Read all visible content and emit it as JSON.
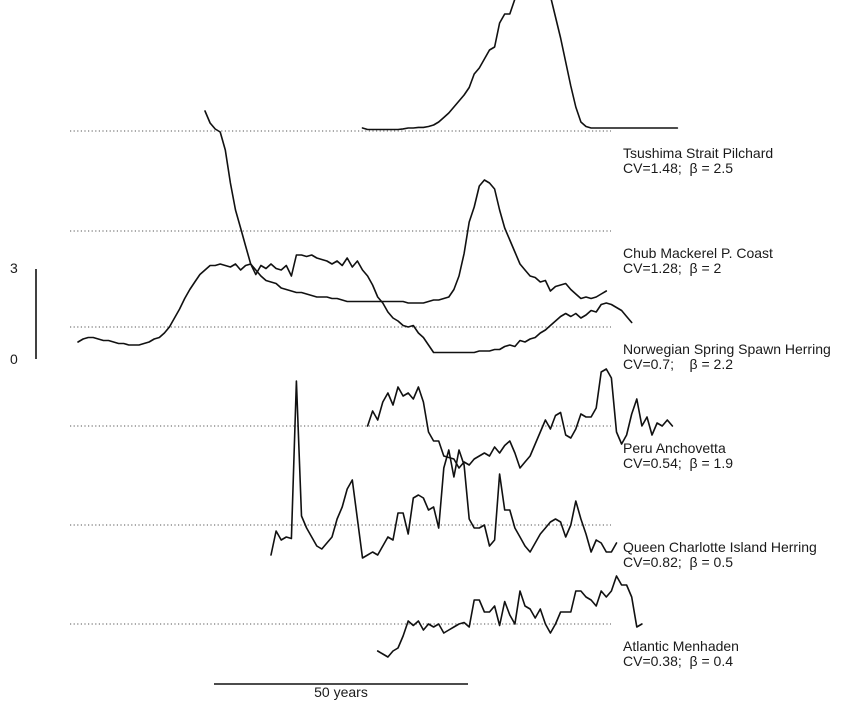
{
  "chart_data": {
    "type": "line",
    "title": "",
    "xlabel": "",
    "ylabel": "",
    "year_step": 1,
    "scale_bars": {
      "y": {
        "value_range": [
          0,
          3
        ],
        "tick_labels": [
          "0",
          "3"
        ]
      },
      "x": {
        "years": 50,
        "label": "50 years"
      }
    },
    "series": [
      {
        "name": "Tsushima Strait Pilchard",
        "stats": "CV=1.48;  β = 2.5",
        "start_year": 56,
        "values": [
          0.1,
          0.05,
          0.05,
          0.05,
          0.05,
          0.05,
          0.05,
          0.05,
          0.07,
          0.1,
          0.1,
          0.12,
          0.12,
          0.15,
          0.2,
          0.3,
          0.45,
          0.6,
          0.8,
          1.0,
          1.2,
          1.45,
          1.9,
          2.1,
          2.4,
          2.7,
          2.8,
          3.6,
          3.9,
          3.9,
          4.4,
          4.7,
          5.1,
          5.3,
          5.3,
          5.5,
          5.1,
          4.5,
          3.8,
          3.1,
          2.3,
          1.5,
          0.8,
          0.3,
          0.15,
          0.1,
          0.1,
          0.1,
          0.1,
          0.1,
          0.1,
          0.1,
          0.1,
          0.1,
          0.1,
          0.1,
          0.1,
          0.1,
          0.1,
          0.1,
          0.1,
          0.1,
          0.1
        ]
      },
      {
        "name": "Chub Mackerel P. Coast",
        "stats": "CV=1.28;  β = 2",
        "start_year": 25,
        "values": [
          4.0,
          3.6,
          3.4,
          3.3,
          2.7,
          1.6,
          0.7,
          0.1,
          -0.5,
          -1.1,
          -1.3,
          -1.5,
          -1.65,
          -1.7,
          -1.75,
          -1.9,
          -1.95,
          -2.0,
          -2.05,
          -2.05,
          -2.1,
          -2.15,
          -2.2,
          -2.2,
          -2.2,
          -2.25,
          -2.25,
          -2.3,
          -2.35,
          -2.35,
          -2.35,
          -2.35,
          -2.35,
          -2.35,
          -2.35,
          -2.35,
          -2.35,
          -2.35,
          -2.35,
          -2.35,
          -2.4,
          -2.4,
          -2.4,
          -2.4,
          -2.35,
          -2.3,
          -2.3,
          -2.25,
          -2.2,
          -1.95,
          -1.5,
          -0.75,
          0.3,
          0.8,
          1.5,
          1.7,
          1.6,
          1.4,
          0.7,
          0.1,
          -0.3,
          -0.7,
          -1.1,
          -1.3,
          -1.5,
          -1.55,
          -1.7,
          -1.65,
          -2.0,
          -1.85,
          -1.8,
          -1.75,
          -1.95,
          -2.1,
          -2.25,
          -2.2,
          -2.25,
          -2.2,
          -2.1,
          -2.0
        ]
      },
      {
        "name": "Norwegian Spring Spawn Herring",
        "stats": "CV=0.7;    β = 2.2",
        "start_year": 0,
        "values": [
          -0.5,
          -0.4,
          -0.35,
          -0.35,
          -0.4,
          -0.45,
          -0.45,
          -0.5,
          -0.55,
          -0.55,
          -0.6,
          -0.6,
          -0.6,
          -0.55,
          -0.5,
          -0.4,
          -0.35,
          -0.2,
          0.0,
          0.3,
          0.6,
          0.95,
          1.25,
          1.5,
          1.75,
          1.9,
          2.05,
          2.05,
          2.1,
          2.05,
          2.0,
          2.1,
          1.9,
          2.05,
          2.1,
          1.75,
          2.05,
          1.95,
          2.1,
          1.95,
          1.9,
          2.05,
          1.7,
          2.4,
          2.4,
          2.35,
          2.4,
          2.3,
          2.25,
          2.2,
          2.1,
          2.2,
          2.05,
          2.3,
          2.0,
          2.2,
          1.9,
          1.7,
          1.4,
          1.0,
          0.8,
          0.5,
          0.3,
          0.2,
          0.05,
          0.0,
          0.05,
          -0.2,
          -0.35,
          -0.6,
          -0.85,
          -0.85,
          -0.85,
          -0.85,
          -0.85,
          -0.85,
          -0.85,
          -0.85,
          -0.85,
          -0.8,
          -0.8,
          -0.8,
          -0.75,
          -0.75,
          -0.65,
          -0.6,
          -0.65,
          -0.45,
          -0.5,
          -0.4,
          -0.35,
          -0.2,
          -0.1,
          0.05,
          0.2,
          0.35,
          0.45,
          0.35,
          0.45,
          0.3,
          0.4,
          0.55,
          0.5,
          0.75,
          0.8,
          0.75,
          0.65,
          0.55,
          0.35,
          0.15
        ]
      },
      {
        "name": "Peru Anchovetta",
        "stats": "CV=0.54;  β = 1.9",
        "start_year": 57,
        "values": [
          0.0,
          0.5,
          0.2,
          0.8,
          1.1,
          0.7,
          1.3,
          1.0,
          1.1,
          0.9,
          1.3,
          0.8,
          -0.2,
          -0.5,
          -0.5,
          -1.0,
          -1.05,
          -1.1,
          -1.4,
          -1.2,
          -1.3,
          -1.1,
          -1.0,
          -0.9,
          -1.0,
          -0.7,
          -0.9,
          -0.65,
          -0.5,
          -0.9,
          -1.4,
          -1.2,
          -1.0,
          -0.6,
          -0.2,
          0.2,
          -0.1,
          0.35,
          0.45,
          -0.3,
          -0.4,
          -0.1,
          0.4,
          0.3,
          0.3,
          0.6,
          1.8,
          1.9,
          1.6,
          -0.2,
          -0.6,
          -0.3,
          0.4,
          0.9,
          0.0,
          0.3,
          -0.3,
          0.1,
          0.0,
          0.2,
          0.0
        ]
      },
      {
        "name": "Queen Charlotte Island Herring",
        "stats": "CV=0.82;  β = 0.5",
        "start_year": 38,
        "values": [
          -1.0,
          -0.2,
          -0.5,
          -0.4,
          -0.45,
          4.8,
          0.3,
          -0.1,
          -0.4,
          -0.7,
          -0.8,
          -0.6,
          -0.4,
          0.2,
          0.6,
          1.2,
          1.5,
          0.2,
          -1.1,
          -1.0,
          -0.9,
          -1.0,
          -0.7,
          -0.4,
          -0.5,
          0.4,
          0.4,
          -0.3,
          0.9,
          1.0,
          0.9,
          0.5,
          0.6,
          -0.1,
          1.9,
          2.5,
          1.6,
          2.5,
          2.0,
          0.2,
          -0.1,
          -0.1,
          0.0,
          -0.7,
          -0.5,
          1.7,
          0.5,
          0.5,
          -0.1,
          -0.4,
          -0.7,
          -0.9,
          -0.6,
          -0.3,
          -0.1,
          0.1,
          0.2,
          0.1,
          -0.4,
          0.0,
          0.8,
          0.2,
          -0.3,
          -0.9,
          -0.5,
          -0.6,
          -0.9,
          -0.9,
          -0.6
        ]
      },
      {
        "name": "Atlantic Menhaden",
        "stats": "CV=0.38;  β = 0.4",
        "start_year": 59,
        "values": [
          -0.9,
          -1.0,
          -1.1,
          -0.9,
          -0.8,
          -0.4,
          0.1,
          -0.05,
          0.1,
          -0.2,
          0.0,
          -0.1,
          0.0,
          -0.3,
          -0.2,
          -0.1,
          0.0,
          0.05,
          -0.1,
          0.8,
          0.8,
          0.4,
          0.4,
          0.6,
          -0.05,
          0.75,
          0.3,
          0.0,
          1.1,
          0.6,
          0.5,
          0.2,
          0.5,
          0.0,
          -0.3,
          0.0,
          0.4,
          0.4,
          0.4,
          1.1,
          1.1,
          0.9,
          0.8,
          0.6,
          1.1,
          0.9,
          1.1,
          1.6,
          1.3,
          1.3,
          0.9,
          -0.1,
          0.0
        ]
      }
    ]
  }
}
